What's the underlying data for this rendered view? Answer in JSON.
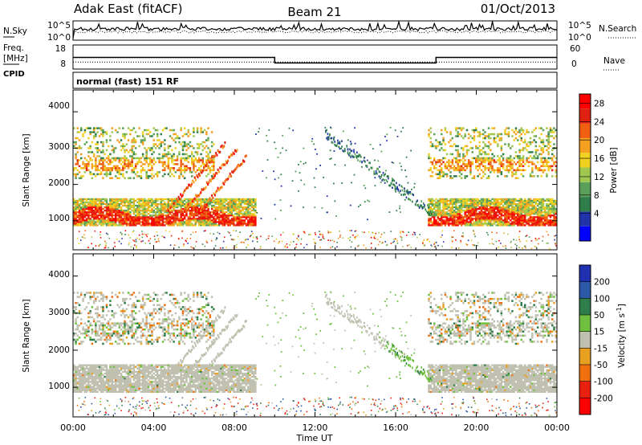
{
  "header": {
    "station": "Adak East (fitACF)",
    "beam": "Beam 21",
    "date": "01/Oct/2013"
  },
  "noise_panel": {
    "left_label": "N.Sky",
    "right_label": "N.Search",
    "ticks_left": [
      "10^5",
      "10^0"
    ],
    "ticks_right": [
      "10^5",
      "10^0"
    ]
  },
  "freq_panel": {
    "left_label_1": "Freq.",
    "left_label_2": "[MHz]",
    "cpid_label": "CPID",
    "right_label": "Nave",
    "ticks_left": [
      "18",
      "8"
    ],
    "ticks_right": [
      "60",
      "0"
    ]
  },
  "cpid_text": "normal (fast) 151 RF",
  "power_panel": {
    "ylabel": "Slant Range [km]",
    "yticks": [
      "4000",
      "3000",
      "2000",
      "1000"
    ]
  },
  "velocity_panel": {
    "ylabel": "Slant Range [km]",
    "yticks": [
      "4000",
      "3000",
      "2000",
      "1000"
    ]
  },
  "x_axis": {
    "ticks": [
      "00:00",
      "04:00",
      "08:00",
      "12:00",
      "16:00",
      "20:00",
      "00:00"
    ],
    "label": "Time UT"
  },
  "power_colorbar": {
    "label": "Power [dB]",
    "tick_labels": [
      "28",
      "24",
      "20",
      "16",
      "12",
      "8",
      "4"
    ],
    "colors": [
      "#0000ff",
      "#2233aa",
      "#2e7d4a",
      "#5aa05a",
      "#a0c850",
      "#f0d020",
      "#f5a020",
      "#f06010",
      "#e02010",
      "#ff0000"
    ]
  },
  "velocity_colorbar": {
    "label": "Velocity [m s",
    "label_sup": "-1",
    "label_end": "]",
    "tick_labels": [
      "200",
      "100",
      "50",
      "15",
      "-15",
      "-50",
      "-100",
      "-200"
    ],
    "colors": [
      "#2030b0",
      "#2c58a8",
      "#2e7d4a",
      "#70c040",
      "#c0c0b0",
      "#e8a020",
      "#f07010",
      "#e82010",
      "#ff0000"
    ]
  },
  "chart_data": {
    "type": "heatmap",
    "title": "Adak East (fitACF)  Beam 21  01/Oct/2013",
    "xlabel": "Time UT",
    "ylabel": "Slant Range [km]",
    "x_range_hours": [
      0,
      24
    ],
    "y_range_km": [
      200,
      4600
    ],
    "freq_mhz_segments": [
      {
        "start_h": 0,
        "end_h": 10,
        "value": 13
      },
      {
        "start_h": 10,
        "end_h": 18,
        "value": 10
      },
      {
        "start_h": 18,
        "end_h": 24,
        "value": 13
      }
    ],
    "nave": 15,
    "power_features_db": [
      {
        "label": "near-range band",
        "start_h": 0,
        "end_h": 9,
        "range_km": [
          900,
          1600
        ],
        "peak": 28
      },
      {
        "label": "far-range band",
        "start_h": 0,
        "end_h": 7,
        "range_km": [
          2200,
          3600
        ],
        "peak": 24
      },
      {
        "label": "descending trace",
        "start_h": 12.5,
        "end_h": 17.8,
        "range_km_start": 3300,
        "range_km_end": 1100,
        "peak": 8
      },
      {
        "label": "near-range band",
        "start_h": 17.6,
        "end_h": 24,
        "range_km": [
          900,
          1600
        ],
        "peak": 28
      },
      {
        "label": "far-range band",
        "start_h": 17.6,
        "end_h": 24,
        "range_km": [
          2200,
          3600
        ],
        "peak": 20
      }
    ],
    "velocity_features_ms": [
      {
        "label": "ground scatter",
        "start_h": 0,
        "end_h": 9,
        "value": 0
      },
      {
        "label": "descending trace",
        "start_h": 15.5,
        "end_h": 18,
        "value": 40
      },
      {
        "label": "ground scatter",
        "start_h": 17.5,
        "end_h": 24,
        "value": 0
      }
    ]
  }
}
